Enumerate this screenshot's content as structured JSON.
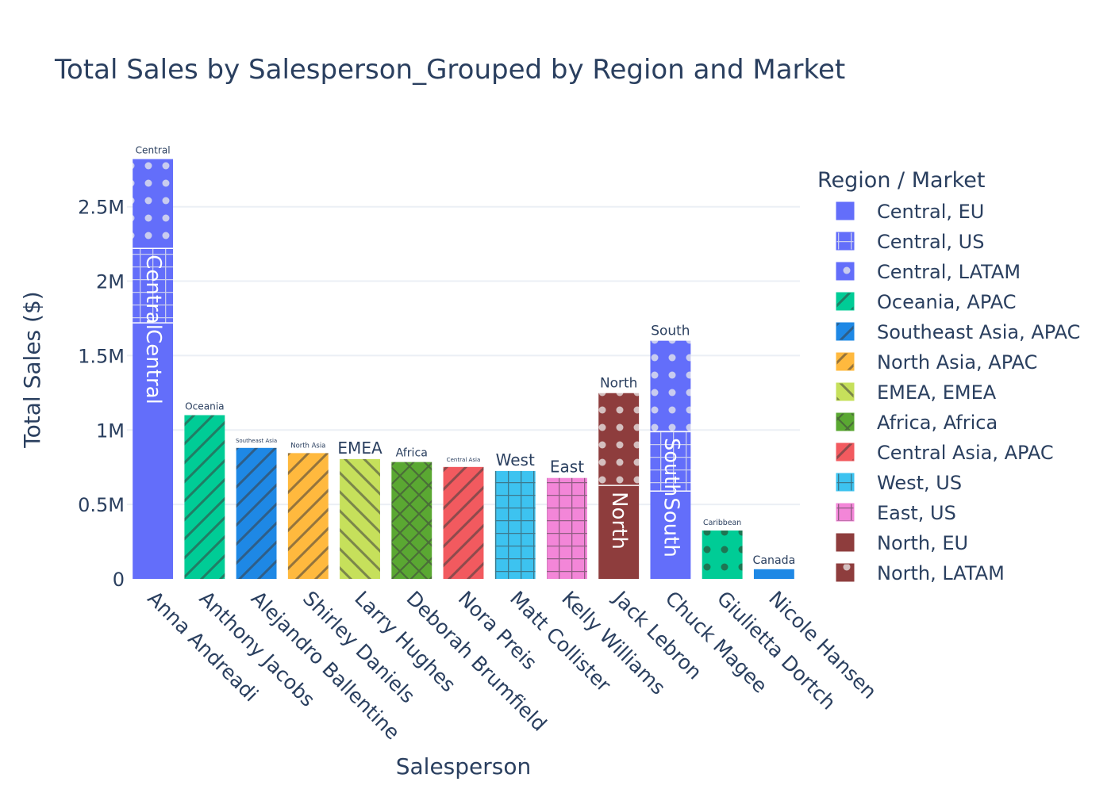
{
  "chart_data": {
    "type": "bar",
    "barmode": "stack",
    "title": "Total Sales by Salesperson_Grouped by Region and Market",
    "xlabel": "Salesperson",
    "ylabel": "Total Sales ($)",
    "ylim": [
      0,
      2850000
    ],
    "yticks": [
      {
        "value": 0,
        "label": "0"
      },
      {
        "value": 500000,
        "label": "0.5M"
      },
      {
        "value": 1000000,
        "label": "1M"
      },
      {
        "value": 1500000,
        "label": "1.5M"
      },
      {
        "value": 2000000,
        "label": "2M"
      },
      {
        "value": 2500000,
        "label": "2.5M"
      }
    ],
    "grid": true,
    "legend_title": "Region / Market",
    "legend_position": "right",
    "categories": [
      "Anna Andreadi",
      "Anthony Jacobs",
      "Alejandro Ballentine",
      "Shirley Daniels",
      "Larry Hughes",
      "Deborah Brumfield",
      "Nora Preis",
      "Matt Collister",
      "Kelly Williams",
      "Jack Lebron",
      "Chuck Magee",
      "Giulietta Dortch",
      "Nicole Hansen"
    ],
    "series": [
      {
        "name": "Central, EU",
        "color": "#636efa",
        "pattern": "none",
        "values": [
          1720000,
          0,
          0,
          0,
          0,
          0,
          0,
          0,
          0,
          0,
          0,
          0,
          0
        ],
        "text": [
          "Central",
          "",
          "",
          "",
          "",
          "",
          "",
          "",
          "",
          "",
          "",
          "",
          ""
        ]
      },
      {
        "name": "Central, US",
        "color": "#636efa",
        "pattern": "grid",
        "values": [
          500000,
          0,
          0,
          0,
          0,
          0,
          0,
          0,
          0,
          0,
          0,
          0,
          0
        ],
        "text": [
          "Central",
          "",
          "",
          "",
          "",
          "",
          "",
          "",
          "",
          "",
          "",
          "",
          ""
        ]
      },
      {
        "name": "Central, LATAM",
        "color": "#636efa",
        "pattern": "dots",
        "values": [
          600000,
          0,
          0,
          0,
          0,
          0,
          0,
          0,
          0,
          0,
          0,
          0,
          0
        ],
        "text": [
          "Central",
          "",
          "",
          "",
          "",
          "",
          "",
          "",
          "",
          "",
          "",
          "",
          ""
        ]
      },
      {
        "name": "Oceania, APAC",
        "color": "#00cc96",
        "pattern": "slash",
        "values": [
          0,
          1100000,
          0,
          0,
          0,
          0,
          0,
          0,
          0,
          0,
          0,
          0,
          0
        ],
        "text": [
          "",
          "Oceania",
          "",
          "",
          "",
          "",
          "",
          "",
          "",
          "",
          "",
          "",
          ""
        ]
      },
      {
        "name": "Southeast Asia, APAC",
        "color": "#1e88e5",
        "pattern": "slash",
        "values": [
          0,
          0,
          880000,
          0,
          0,
          0,
          0,
          0,
          0,
          0,
          0,
          0,
          0
        ],
        "text": [
          "",
          "",
          "Southeast Asia",
          "",
          "",
          "",
          "",
          "",
          "",
          "",
          "",
          "",
          ""
        ]
      },
      {
        "name": "North Asia, APAC",
        "color": "#ffb93e",
        "pattern": "slash",
        "values": [
          0,
          0,
          0,
          845000,
          0,
          0,
          0,
          0,
          0,
          0,
          0,
          0,
          0
        ],
        "text": [
          "",
          "",
          "",
          "North Asia",
          "",
          "",
          "",
          "",
          "",
          "",
          "",
          "",
          ""
        ]
      },
      {
        "name": "EMEA, EMEA",
        "color": "#c6e05b",
        "pattern": "backslash",
        "values": [
          0,
          0,
          0,
          0,
          805000,
          0,
          0,
          0,
          0,
          0,
          0,
          0,
          0
        ],
        "text": [
          "",
          "",
          "",
          "",
          "EMEA",
          "",
          "",
          "",
          "",
          "",
          "",
          "",
          ""
        ]
      },
      {
        "name": "Africa, Africa",
        "color": "#5aa832",
        "pattern": "cross",
        "values": [
          0,
          0,
          0,
          0,
          0,
          785000,
          0,
          0,
          0,
          0,
          0,
          0,
          0
        ],
        "text": [
          "",
          "",
          "",
          "",
          "",
          "Africa",
          "",
          "",
          "",
          "",
          "",
          "",
          ""
        ]
      },
      {
        "name": "Central Asia, APAC",
        "color": "#f25a5f",
        "pattern": "slash",
        "values": [
          0,
          0,
          0,
          0,
          0,
          0,
          752000,
          0,
          0,
          0,
          0,
          0,
          0
        ],
        "text": [
          "",
          "",
          "",
          "",
          "",
          "",
          "Central Asia",
          "",
          "",
          "",
          "",
          "",
          ""
        ]
      },
      {
        "name": "West, US",
        "color": "#3dc3f0",
        "pattern": "grid",
        "values": [
          0,
          0,
          0,
          0,
          0,
          0,
          0,
          725000,
          0,
          0,
          0,
          0,
          0
        ],
        "text": [
          "",
          "",
          "",
          "",
          "",
          "",
          "",
          "West",
          "",
          "",
          "",
          "",
          ""
        ]
      },
      {
        "name": "East, US",
        "color": "#f386d8",
        "pattern": "grid",
        "values": [
          0,
          0,
          0,
          0,
          0,
          0,
          0,
          0,
          678000,
          0,
          0,
          0,
          0
        ],
        "text": [
          "",
          "",
          "",
          "",
          "",
          "",
          "",
          "",
          "East",
          "",
          "",
          "",
          ""
        ]
      },
      {
        "name": "North, EU",
        "color": "#8e3d3d",
        "pattern": "none",
        "values": [
          0,
          0,
          0,
          0,
          0,
          0,
          0,
          0,
          0,
          628000,
          0,
          0,
          0
        ],
        "text": [
          "",
          "",
          "",
          "",
          "",
          "",
          "",
          "",
          "",
          "North",
          "",
          "",
          ""
        ]
      },
      {
        "name": "North, LATAM",
        "color": "#8e3d3d",
        "pattern": "dots",
        "values": [
          0,
          0,
          0,
          0,
          0,
          0,
          0,
          0,
          0,
          620000,
          0,
          0,
          0
        ],
        "text": [
          "",
          "",
          "",
          "",
          "",
          "",
          "",
          "",
          "",
          "North",
          "",
          "",
          ""
        ]
      },
      {
        "name": "",
        "color": "#636efa",
        "pattern": "none",
        "values": [
          0,
          0,
          0,
          0,
          0,
          0,
          0,
          0,
          0,
          0,
          590000,
          0,
          0
        ],
        "text": [
          "",
          "",
          "",
          "",
          "",
          "",
          "",
          "",
          "",
          "",
          "South",
          "",
          ""
        ]
      },
      {
        "name": "",
        "color": "#636efa",
        "pattern": "grid",
        "values": [
          0,
          0,
          0,
          0,
          0,
          0,
          0,
          0,
          0,
          0,
          400000,
          0,
          0
        ],
        "text": [
          "",
          "",
          "",
          "",
          "",
          "",
          "",
          "",
          "",
          "",
          "South",
          "",
          ""
        ]
      },
      {
        "name": "",
        "color": "#636efa",
        "pattern": "dots",
        "values": [
          0,
          0,
          0,
          0,
          0,
          0,
          0,
          0,
          0,
          0,
          610000,
          0,
          0
        ],
        "text": [
          "",
          "",
          "",
          "",
          "",
          "",
          "",
          "",
          "",
          "",
          "South",
          "",
          ""
        ]
      },
      {
        "name": "",
        "color": "#00cc96",
        "pattern": "dots",
        "values": [
          0,
          0,
          0,
          0,
          0,
          0,
          0,
          0,
          0,
          0,
          0,
          325000,
          0
        ],
        "text": [
          "",
          "",
          "",
          "",
          "",
          "",
          "",
          "",
          "",
          "",
          "",
          "Caribbean",
          ""
        ]
      },
      {
        "name": "",
        "color": "#1e88e5",
        "pattern": "none",
        "values": [
          0,
          0,
          0,
          0,
          0,
          0,
          0,
          0,
          0,
          0,
          0,
          0,
          65000
        ],
        "text": [
          "",
          "",
          "",
          "",
          "",
          "",
          "",
          "",
          "",
          "",
          "",
          "",
          "Canada"
        ]
      }
    ]
  }
}
